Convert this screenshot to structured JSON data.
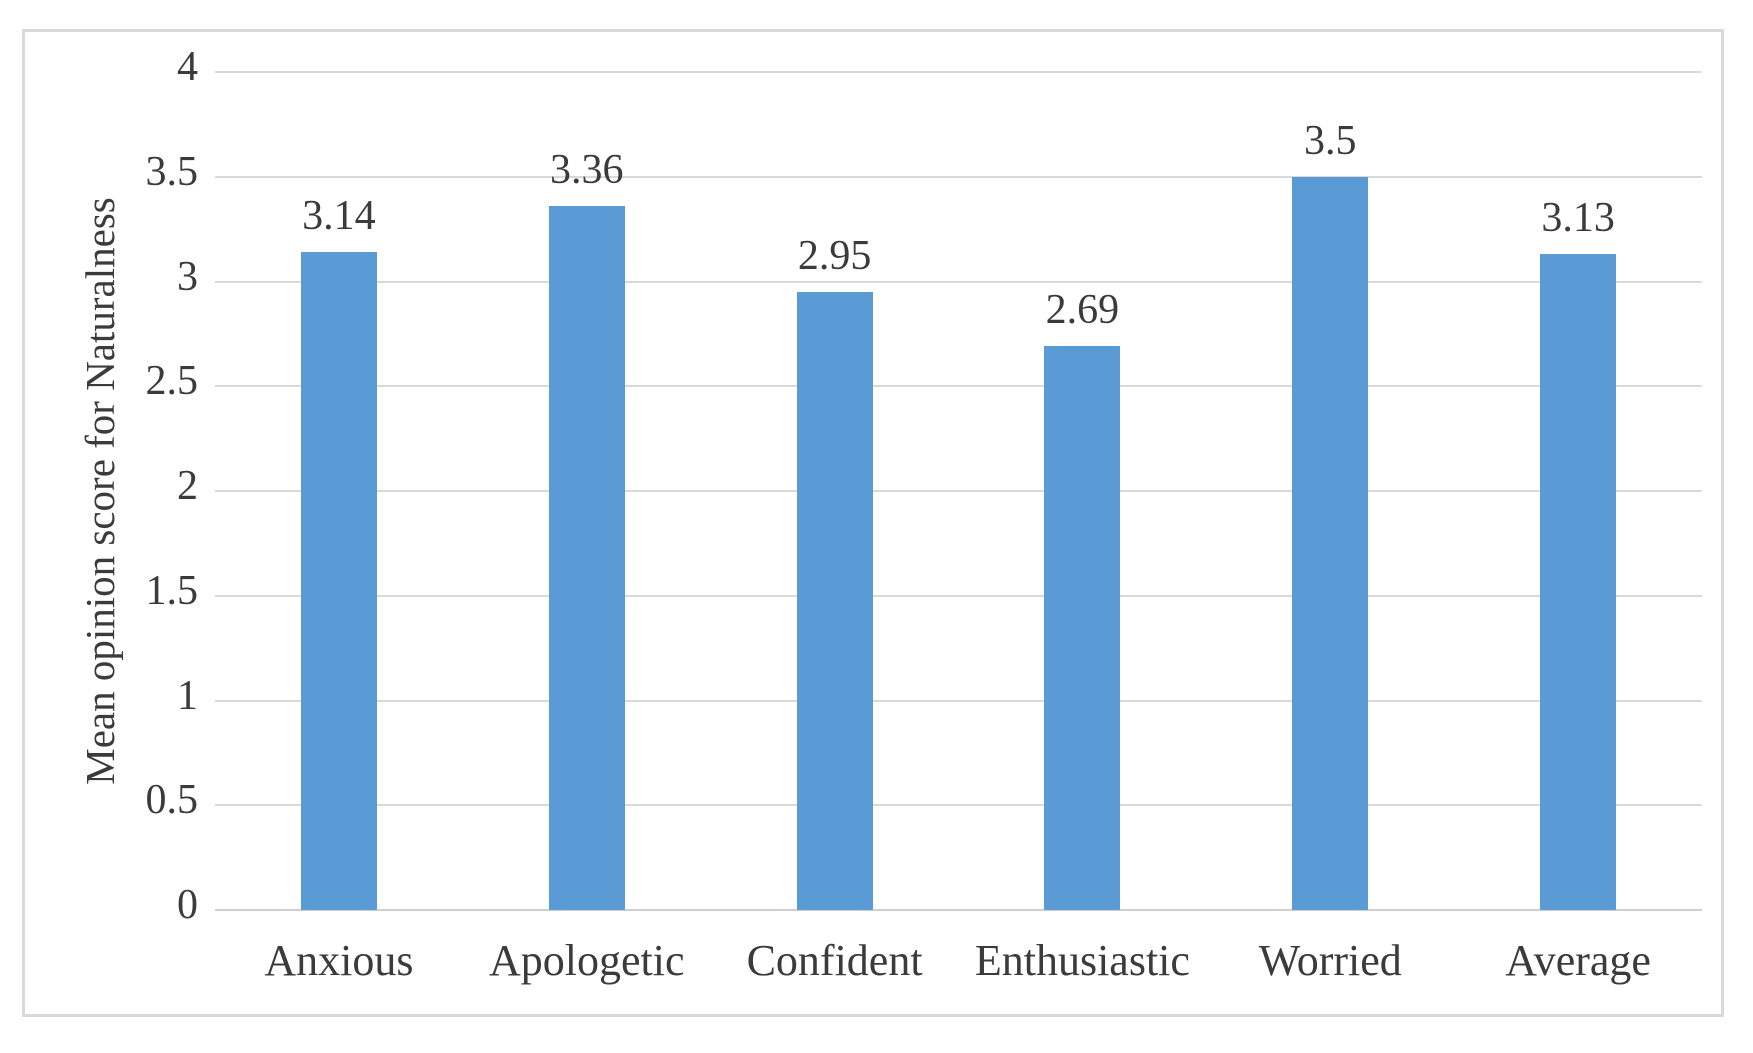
{
  "chart_data": {
    "type": "bar",
    "title": "",
    "categories": [
      "Anxious",
      "Apologetic",
      "Confident",
      "Enthusiastic",
      "Worried",
      "Average"
    ],
    "values": [
      3.14,
      3.36,
      2.95,
      2.69,
      3.5,
      3.13
    ],
    "data_labels": [
      "3.14",
      "3.36",
      "2.95",
      "2.69",
      "3.5",
      "3.13"
    ],
    "xlabel": "",
    "ylabel": "Mean opinion score for Naturalness",
    "ylim": [
      0,
      4
    ],
    "ytick_step": 0.5,
    "yticks": [
      "0",
      "0.5",
      "1",
      "1.5",
      "2",
      "2.5",
      "3",
      "3.5",
      "4"
    ],
    "grid": "horizontal",
    "legend": "none",
    "bar_color": "#5B9BD5",
    "gridline_color": "#d9d9d9",
    "axis_line_color": "#cfcfcf",
    "text_color": "#3b3b3b",
    "frame_border_color": "#d9d9d9",
    "background_color": "#ffffff"
  }
}
